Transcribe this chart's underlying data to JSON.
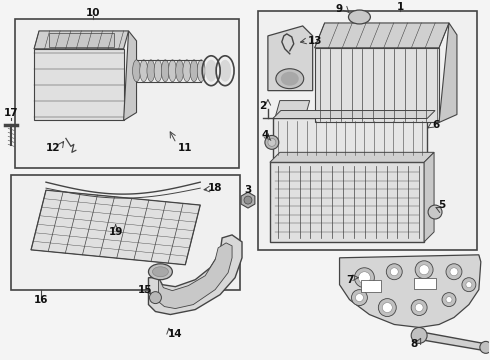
{
  "bg_color": "#f4f4f4",
  "line_color": "#444444",
  "text_color": "#111111",
  "fig_width": 4.9,
  "fig_height": 3.6,
  "dpi": 100
}
